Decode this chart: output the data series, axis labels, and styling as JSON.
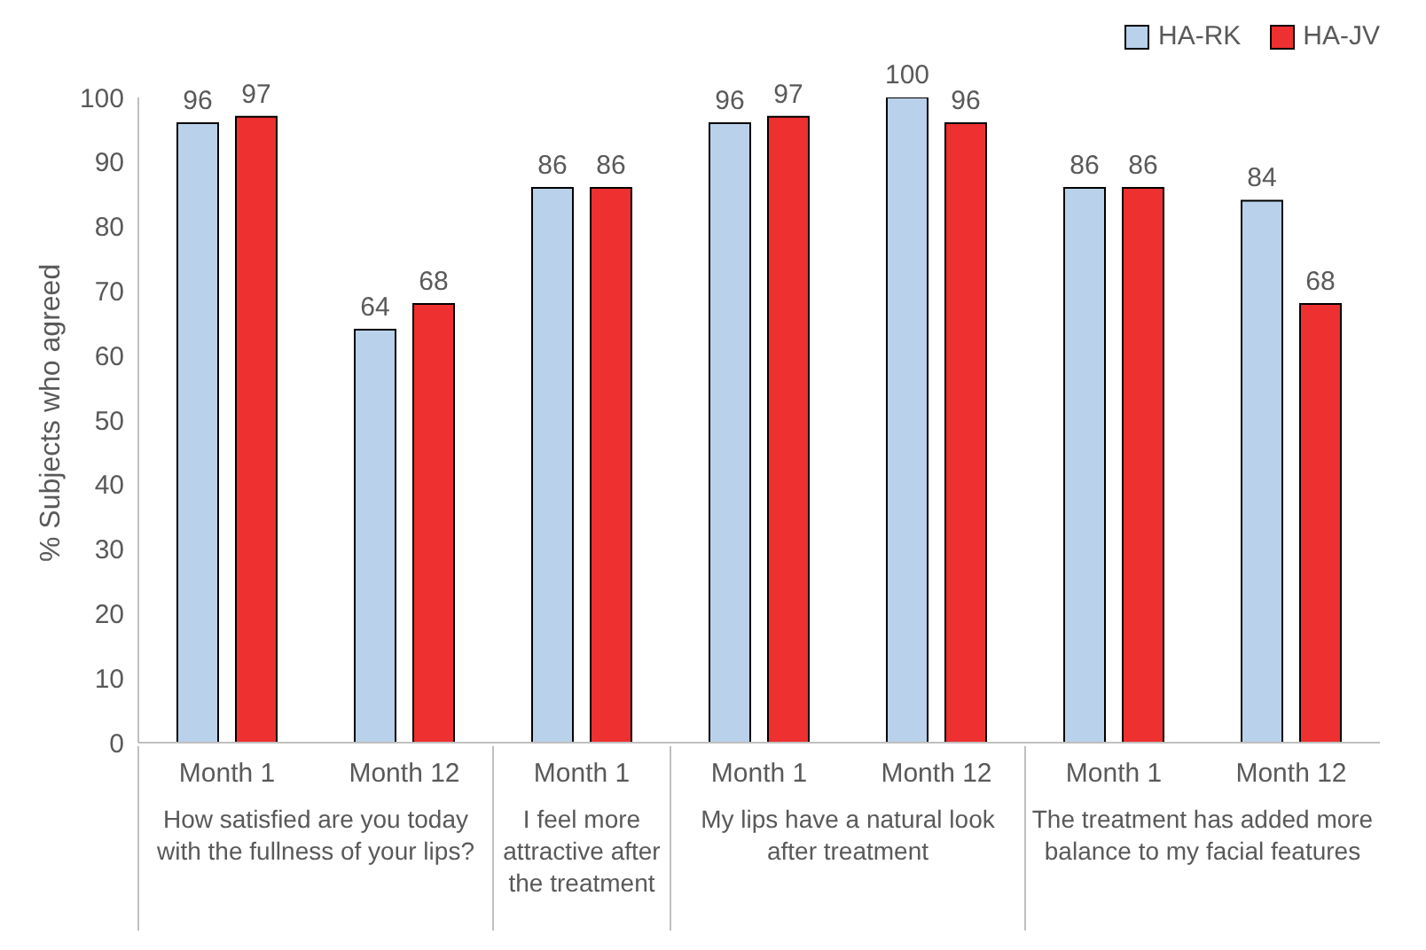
{
  "chart_data": {
    "type": "bar",
    "ylabel": "% Subjects who agreed",
    "categories": [
      "Month 1",
      "Month 12",
      "Month 1",
      "Month 1",
      "Month 12",
      "Month 1",
      "Month 12"
    ],
    "series": [
      {
        "name": "HA-RK",
        "color": "#b9d1ea",
        "values": [
          96,
          64,
          86,
          96,
          100,
          86,
          84
        ]
      },
      {
        "name": "HA-JV",
        "color": "#ee3030",
        "values": [
          97,
          68,
          86,
          97,
          96,
          86,
          68
        ]
      }
    ],
    "ylim": [
      0,
      100
    ],
    "yticks": [
      0,
      10,
      20,
      30,
      40,
      50,
      60,
      70,
      80,
      90,
      100
    ],
    "grid": false,
    "legend": "top right",
    "data_labels": true,
    "annotations": [
      "How satisfied are you today with the fullness of your lips?",
      "I feel more attractive after the treatment",
      "My lips have a natural look after treatment",
      "The treatment has added more balance to my facial features"
    ]
  }
}
